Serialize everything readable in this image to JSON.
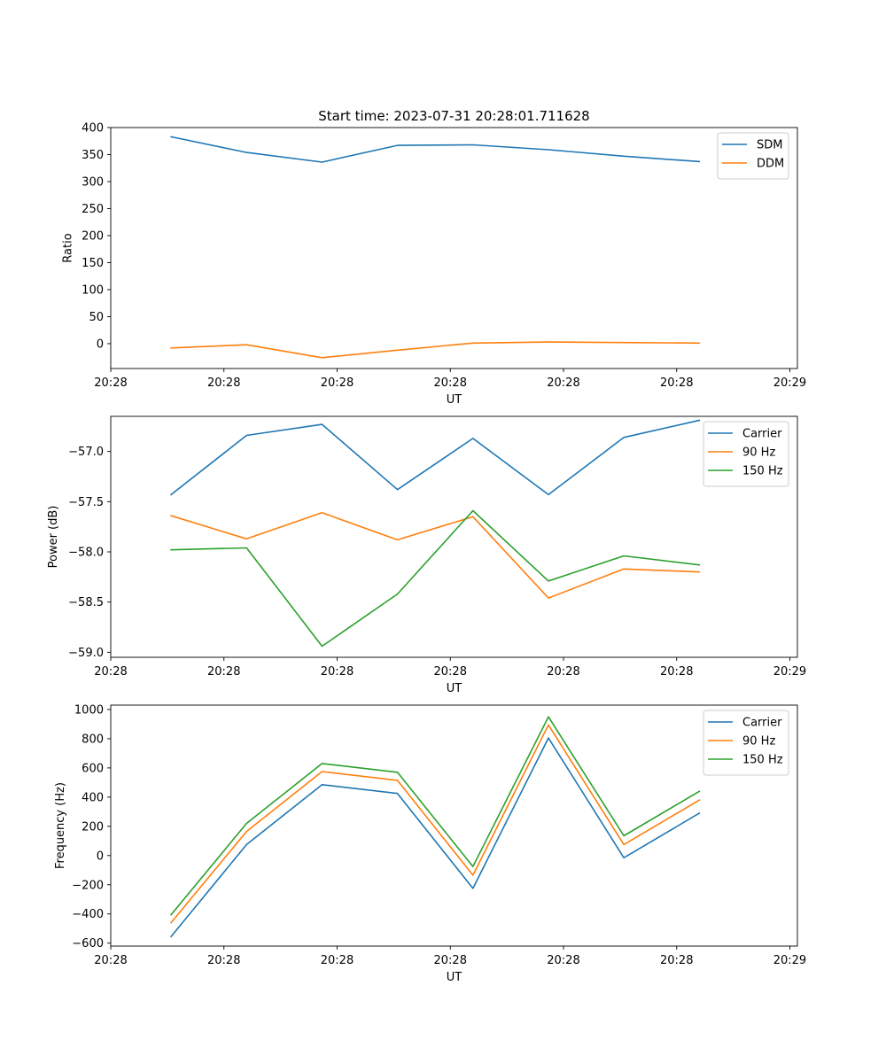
{
  "figure": {
    "title": "Start time: 2023-07-31 20:28:01.711628"
  },
  "colors": {
    "blue": "#1f77b4",
    "orange": "#ff7f0e",
    "green": "#2ca02c"
  },
  "chart_data": [
    {
      "type": "line",
      "title": "Start time: 2023-07-31 20:28:01.711628",
      "xlabel": "UT",
      "ylabel": "Ratio",
      "x": [
        1,
        2,
        3,
        4,
        5,
        6,
        7,
        8
      ],
      "xlim": [
        0.2,
        9.3
      ],
      "xticks": [
        0.2,
        1.7,
        3.2,
        4.7,
        6.2,
        7.7,
        9.2
      ],
      "xtick_labels": [
        "20:28",
        "20:28",
        "20:28",
        "20:28",
        "20:28",
        "20:28",
        "20:29"
      ],
      "ylim": [
        -46,
        400
      ],
      "yticks": [
        0,
        50,
        100,
        150,
        200,
        250,
        300,
        350,
        400
      ],
      "ytick_labels": [
        "0",
        "50",
        "100",
        "150",
        "200",
        "250",
        "300",
        "350",
        "400"
      ],
      "legend": "top-right",
      "series": [
        {
          "name": "SDM",
          "color": "#1f77b4",
          "values": [
            383,
            354,
            336,
            367,
            368,
            359,
            347,
            337
          ]
        },
        {
          "name": "DDM",
          "color": "#ff7f0e",
          "values": [
            -8,
            -2,
            -26,
            -12,
            1,
            3,
            2,
            1
          ]
        }
      ]
    },
    {
      "type": "line",
      "title": "",
      "xlabel": "UT",
      "ylabel": "Power (dB)",
      "x": [
        1,
        2,
        3,
        4,
        5,
        6,
        7,
        8
      ],
      "xlim": [
        0.2,
        9.3
      ],
      "xticks": [
        0.2,
        1.7,
        3.2,
        4.7,
        6.2,
        7.7,
        9.2
      ],
      "xtick_labels": [
        "20:28",
        "20:28",
        "20:28",
        "20:28",
        "20:28",
        "20:28",
        "20:29"
      ],
      "ylim": [
        -59.05,
        -56.65
      ],
      "yticks": [
        -59.0,
        -58.5,
        -58.0,
        -57.5,
        -57.0
      ],
      "ytick_labels": [
        "−59.0",
        "−58.5",
        "−58.0",
        "−57.5",
        "−57.0"
      ],
      "legend": "top-right",
      "series": [
        {
          "name": "Carrier",
          "color": "#1f77b4",
          "values": [
            -57.43,
            -56.84,
            -56.73,
            -57.38,
            -56.87,
            -57.43,
            -56.86,
            -56.69
          ]
        },
        {
          "name": "90 Hz",
          "color": "#ff7f0e",
          "values": [
            -57.64,
            -57.87,
            -57.61,
            -57.88,
            -57.65,
            -58.46,
            -58.17,
            -58.2
          ]
        },
        {
          "name": "150 Hz",
          "color": "#2ca02c",
          "values": [
            -57.98,
            -57.96,
            -58.94,
            -58.42,
            -57.59,
            -58.29,
            -58.04,
            -58.13
          ]
        }
      ]
    },
    {
      "type": "line",
      "title": "",
      "xlabel": "UT",
      "ylabel": "Frequency (Hz)",
      "x": [
        1,
        2,
        3,
        4,
        5,
        6,
        7,
        8
      ],
      "xlim": [
        0.2,
        9.3
      ],
      "xticks": [
        0.2,
        1.7,
        3.2,
        4.7,
        6.2,
        7.7,
        9.2
      ],
      "xtick_labels": [
        "20:28",
        "20:28",
        "20:28",
        "20:28",
        "20:28",
        "20:28",
        "20:29"
      ],
      "ylim": [
        -620,
        1030
      ],
      "yticks": [
        -600,
        -400,
        -200,
        0,
        200,
        400,
        600,
        800,
        1000
      ],
      "ytick_labels": [
        "−600",
        "−400",
        "−200",
        "0",
        "200",
        "400",
        "600",
        "800",
        "1000"
      ],
      "legend": "top-right",
      "series": [
        {
          "name": "Carrier",
          "color": "#1f77b4",
          "values": [
            -555,
            75,
            485,
            425,
            -225,
            805,
            -15,
            290
          ]
        },
        {
          "name": "90 Hz",
          "color": "#ff7f0e",
          "values": [
            -460,
            165,
            575,
            515,
            -135,
            895,
            75,
            380
          ]
        },
        {
          "name": "150 Hz",
          "color": "#2ca02c",
          "values": [
            -405,
            220,
            630,
            570,
            -75,
            950,
            135,
            440
          ]
        }
      ]
    }
  ]
}
